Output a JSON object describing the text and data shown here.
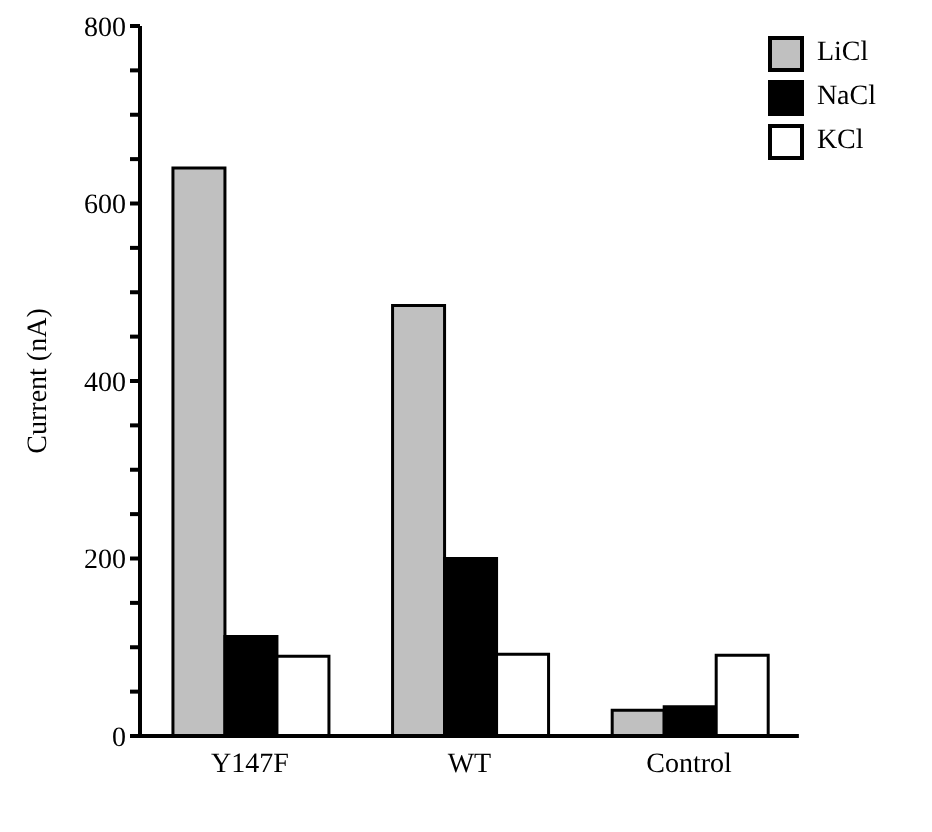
{
  "chart_data": {
    "type": "bar",
    "ylabel": "Current (nA)",
    "categories": [
      "Y147F",
      "WT",
      "Control"
    ],
    "series": [
      {
        "name": "LiCl",
        "color": "#c0c0c0",
        "values": [
          640,
          485,
          29
        ]
      },
      {
        "name": "NaCl",
        "color": "#000000",
        "values": [
          112,
          200,
          33
        ]
      },
      {
        "name": "KCl",
        "color": "#ffffff",
        "values": [
          90,
          92,
          91
        ]
      }
    ],
    "ylim": [
      0,
      800
    ],
    "yticks": [
      0,
      {
        "value": 50,
        "label": null
      },
      {
        "value": 100,
        "label": null
      },
      {
        "value": 150,
        "label": null
      },
      200,
      {
        "value": 250,
        "label": null
      },
      {
        "value": 300,
        "label": null
      },
      {
        "value": 350,
        "label": null
      },
      400,
      {
        "value": 450,
        "label": null
      },
      {
        "value": 500,
        "label": null
      },
      {
        "value": 550,
        "label": null
      },
      600,
      {
        "value": 650,
        "label": null
      },
      {
        "value": 700,
        "label": null
      },
      {
        "value": 750,
        "label": null
      },
      800
    ],
    "legend": "top right",
    "grid": false
  }
}
